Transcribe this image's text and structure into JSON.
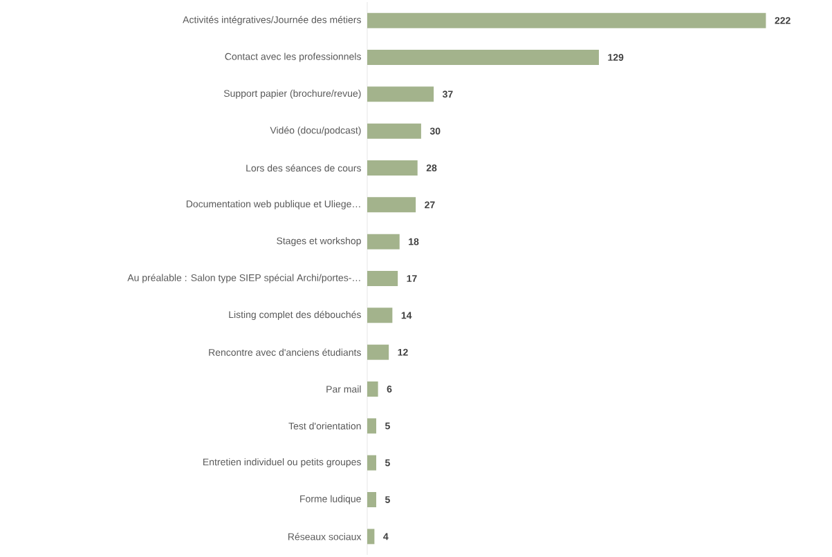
{
  "chart_data": {
    "type": "bar",
    "orientation": "horizontal",
    "categories": [
      "Activités intégratives/Journée des métiers",
      "Contact avec les professionnels",
      "Support papier (brochure/revue)",
      "Vidéo (docu/podcast)",
      "Lors des séances de cours",
      "Documentation web publique et Uliege…",
      "Stages et workshop",
      "Au préalable : Salon type SIEP spécial Archi/portes-…",
      "Listing complet des débouchés",
      "Rencontre avec d'anciens étudiants",
      "Par mail",
      "Test d'orientation",
      "Entretien individuel ou petits groupes",
      "Forme ludique",
      "Réseaux sociaux"
    ],
    "values": [
      222,
      129,
      37,
      30,
      28,
      27,
      18,
      17,
      14,
      12,
      6,
      5,
      5,
      5,
      4
    ],
    "color": "#a3b38c",
    "data_labels": true
  }
}
